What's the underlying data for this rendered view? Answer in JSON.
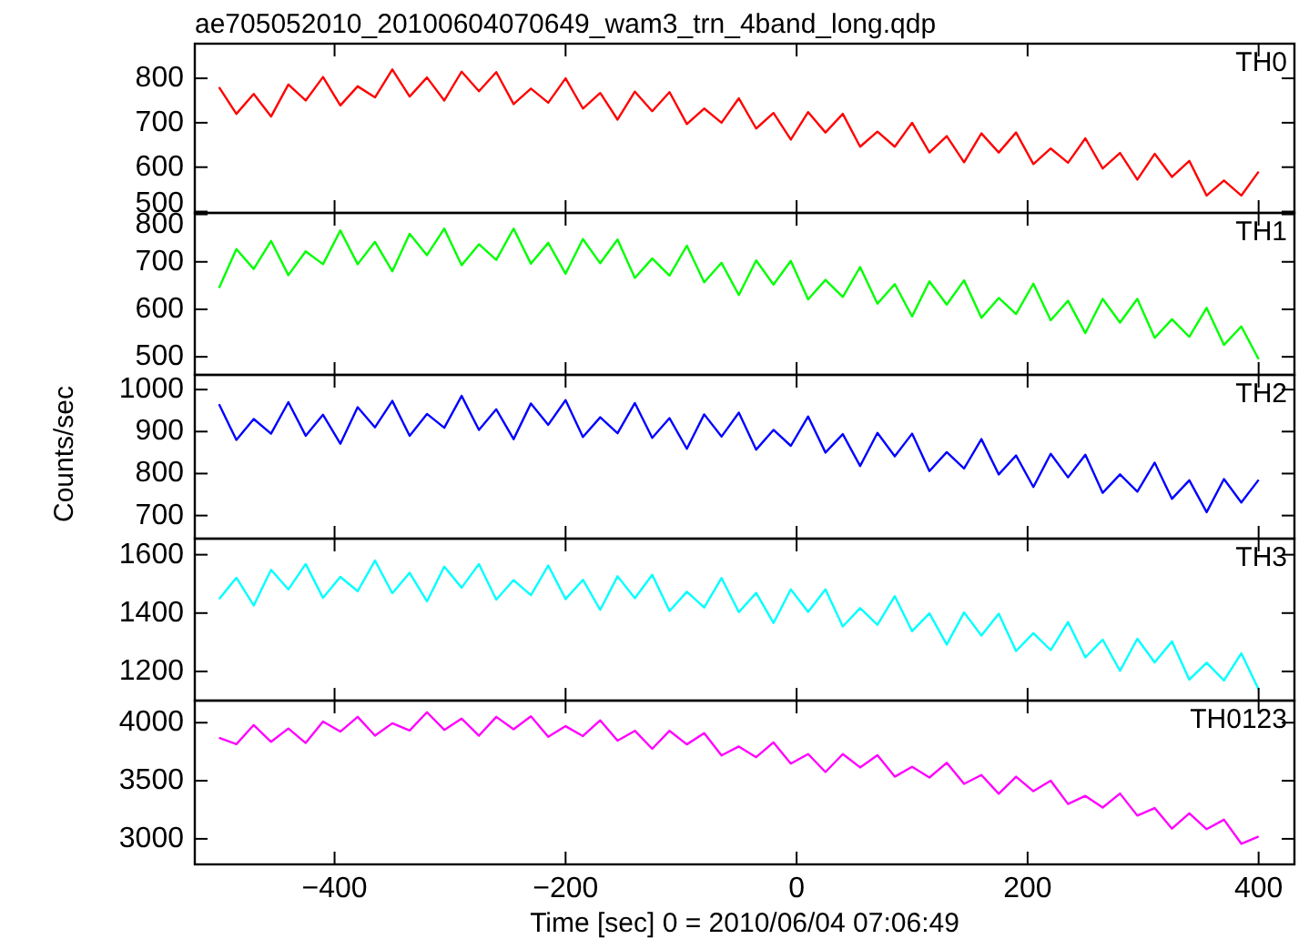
{
  "chart_data": [
    {
      "type": "line",
      "title": "ae705052010_20100604070649_wam3_trn_4band_long.qdp",
      "x": [
        -500,
        -485,
        -470,
        -455,
        -440,
        -425,
        -410,
        -395,
        -380,
        -365,
        -350,
        -335,
        -320,
        -305,
        -290,
        -275,
        -260,
        -245,
        -230,
        -215,
        -200,
        -185,
        -170,
        -155,
        -140,
        -125,
        -110,
        -95,
        -80,
        -65,
        -50,
        -35,
        -20,
        -5,
        10,
        25,
        40,
        55,
        70,
        85,
        100,
        115,
        130,
        145,
        160,
        175,
        190,
        205,
        220,
        235,
        250,
        265,
        280,
        295,
        310,
        325,
        340,
        355,
        370,
        385,
        400
      ],
      "xlim": [
        -521,
        431
      ],
      "xticks": [
        -400,
        -200,
        0,
        200,
        400
      ],
      "ylim": [
        497,
        878
      ],
      "yticks": [
        500,
        600,
        700,
        800
      ],
      "tick_labels": "y",
      "grid": false,
      "series": [
        {
          "name": "TH0",
          "color": "#ff0000",
          "values": [
            780,
            720,
            765,
            714,
            786,
            750,
            803,
            739,
            782,
            757,
            820,
            759,
            802,
            750,
            815,
            771,
            814,
            742,
            777,
            745,
            800,
            732,
            767,
            707,
            770,
            726,
            769,
            697,
            732,
            700,
            755,
            687,
            722,
            662,
            724,
            678,
            720,
            646,
            680,
            646,
            700,
            633,
            670,
            611,
            676,
            633,
            678,
            607,
            642,
            610,
            665,
            597,
            632,
            572,
            630,
            578,
            614,
            536,
            570,
            536,
            590
          ]
        }
      ]
    },
    {
      "type": "line",
      "x": [
        -500,
        -485,
        -470,
        -455,
        -440,
        -425,
        -410,
        -395,
        -380,
        -365,
        -350,
        -335,
        -320,
        -305,
        -290,
        -275,
        -260,
        -245,
        -230,
        -215,
        -200,
        -185,
        -170,
        -155,
        -140,
        -125,
        -110,
        -95,
        -80,
        -65,
        -50,
        -35,
        -20,
        -5,
        10,
        25,
        40,
        55,
        70,
        85,
        100,
        115,
        130,
        145,
        160,
        175,
        190,
        205,
        220,
        235,
        250,
        265,
        280,
        295,
        310,
        325,
        340,
        355,
        370,
        385,
        400
      ],
      "xlim": [
        -521,
        431
      ],
      "xticks": [
        -400,
        -200,
        0,
        200,
        400
      ],
      "ylim": [
        462,
        803
      ],
      "yticks": [
        500,
        600,
        700,
        800
      ],
      "tick_labels": "y",
      "grid": false,
      "series": [
        {
          "name": "TH1",
          "color": "#00ff00",
          "values": [
            645,
            727,
            685,
            744,
            672,
            722,
            695,
            766,
            695,
            742,
            680,
            759,
            714,
            770,
            693,
            737,
            704,
            770,
            696,
            740,
            675,
            748,
            697,
            747,
            666,
            707,
            671,
            734,
            657,
            698,
            630,
            703,
            652,
            702,
            621,
            662,
            626,
            689,
            612,
            653,
            585,
            659,
            610,
            661,
            582,
            624,
            590,
            654,
            577,
            618,
            550,
            622,
            572,
            622,
            540,
            579,
            542,
            603,
            525,
            564,
            495
          ]
        }
      ]
    },
    {
      "type": "line",
      "ylabel": "Counts/sec",
      "x": [
        -500,
        -485,
        -470,
        -455,
        -440,
        -425,
        -410,
        -395,
        -380,
        -365,
        -350,
        -335,
        -320,
        -305,
        -290,
        -275,
        -260,
        -245,
        -230,
        -215,
        -200,
        -185,
        -170,
        -155,
        -140,
        -125,
        -110,
        -95,
        -80,
        -65,
        -50,
        -35,
        -20,
        -5,
        10,
        25,
        40,
        55,
        70,
        85,
        100,
        115,
        130,
        145,
        160,
        175,
        190,
        205,
        220,
        235,
        250,
        265,
        280,
        295,
        310,
        325,
        340,
        355,
        370,
        385,
        400
      ],
      "xlim": [
        -521,
        431
      ],
      "xticks": [
        -400,
        -200,
        0,
        200,
        400
      ],
      "ylim": [
        645,
        1035
      ],
      "yticks": [
        700,
        800,
        900,
        1000
      ],
      "tick_labels": "y",
      "grid": false,
      "series": [
        {
          "name": "TH2",
          "color": "#0000ff",
          "values": [
            965,
            880,
            930,
            895,
            970,
            890,
            940,
            871,
            958,
            910,
            973,
            890,
            942,
            909,
            985,
            904,
            953,
            882,
            967,
            916,
            975,
            887,
            934,
            896,
            968,
            885,
            932,
            859,
            941,
            888,
            945,
            857,
            904,
            866,
            936,
            850,
            894,
            818,
            897,
            841,
            895,
            806,
            851,
            812,
            882,
            798,
            843,
            768,
            847,
            791,
            845,
            754,
            798,
            757,
            826,
            740,
            784,
            708,
            787,
            731,
            785
          ]
        }
      ]
    },
    {
      "type": "line",
      "x": [
        -500,
        -485,
        -470,
        -455,
        -440,
        -425,
        -410,
        -395,
        -380,
        -365,
        -350,
        -335,
        -320,
        -305,
        -290,
        -275,
        -260,
        -245,
        -230,
        -215,
        -200,
        -185,
        -170,
        -155,
        -140,
        -125,
        -110,
        -95,
        -80,
        -65,
        -50,
        -35,
        -20,
        -5,
        10,
        25,
        40,
        55,
        70,
        85,
        100,
        115,
        130,
        145,
        160,
        175,
        190,
        205,
        220,
        235,
        250,
        265,
        280,
        295,
        310,
        325,
        340,
        355,
        370,
        385,
        400
      ],
      "xlim": [
        -521,
        431
      ],
      "xticks": [
        -400,
        -200,
        0,
        200,
        400
      ],
      "ylim": [
        1100,
        1655
      ],
      "yticks": [
        1200,
        1400,
        1600
      ],
      "tick_labels": "y",
      "grid": false,
      "series": [
        {
          "name": "TH3",
          "color": "#00ffff",
          "values": [
            1448,
            1521,
            1426,
            1548,
            1481,
            1568,
            1452,
            1524,
            1475,
            1580,
            1468,
            1538,
            1440,
            1559,
            1487,
            1568,
            1446,
            1513,
            1461,
            1563,
            1448,
            1514,
            1411,
            1526,
            1451,
            1531,
            1407,
            1473,
            1419,
            1520,
            1403,
            1469,
            1366,
            1481,
            1404,
            1481,
            1354,
            1417,
            1360,
            1458,
            1338,
            1399,
            1292,
            1402,
            1323,
            1398,
            1270,
            1331,
            1273,
            1369,
            1248,
            1309,
            1202,
            1312,
            1231,
            1303,
            1172,
            1230,
            1169,
            1262,
            1138
          ]
        }
      ]
    },
    {
      "type": "line",
      "xlabel": "Time [sec] 0 = 2010/06/04 07:06:49",
      "x": [
        -500,
        -485,
        -470,
        -455,
        -440,
        -425,
        -410,
        -395,
        -380,
        -365,
        -350,
        -335,
        -320,
        -305,
        -290,
        -275,
        -260,
        -245,
        -230,
        -215,
        -200,
        -185,
        -170,
        -155,
        -140,
        -125,
        -110,
        -95,
        -80,
        -65,
        -50,
        -35,
        -20,
        -5,
        10,
        25,
        40,
        55,
        70,
        85,
        100,
        115,
        130,
        145,
        160,
        175,
        190,
        205,
        220,
        235,
        250,
        265,
        280,
        295,
        310,
        325,
        340,
        355,
        370,
        385,
        400
      ],
      "xlim": [
        -521,
        431
      ],
      "xticks": [
        -400,
        -200,
        0,
        200,
        400
      ],
      "ylim": [
        2780,
        4190
      ],
      "yticks": [
        3000,
        3500,
        4000
      ],
      "grid": false,
      "series": [
        {
          "name": "TH0123",
          "color": "#ff00ff",
          "values": [
            3870,
            3815,
            3980,
            3835,
            3950,
            3825,
            4010,
            3923,
            4050,
            3888,
            3995,
            3933,
            4090,
            3938,
            4035,
            3888,
            4050,
            3943,
            4055,
            3878,
            3970,
            3885,
            4020,
            3845,
            3930,
            3775,
            3930,
            3813,
            3910,
            3718,
            3795,
            3703,
            3830,
            3648,
            3730,
            3575,
            3730,
            3615,
            3720,
            3535,
            3620,
            3528,
            3655,
            3473,
            3550,
            3388,
            3535,
            3410,
            3500,
            3300,
            3370,
            3270,
            3390,
            3200,
            3265,
            3088,
            3220,
            3083,
            3165,
            2958,
            3020
          ]
        }
      ]
    }
  ]
}
